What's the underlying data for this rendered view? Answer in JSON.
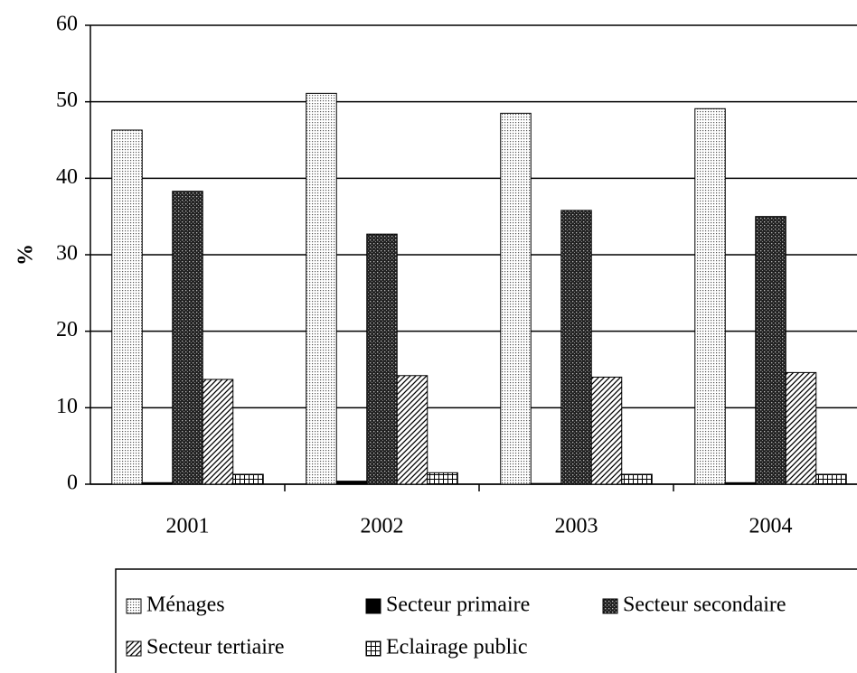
{
  "chart_data": {
    "type": "bar",
    "ylabel": "%",
    "categories": [
      "2001",
      "2002",
      "2003",
      "2004"
    ],
    "series": [
      {
        "name": "Ménages",
        "pattern": "dots",
        "values": [
          46.3,
          51.1,
          48.5,
          49.1
        ]
      },
      {
        "name": "Secteur primaire",
        "pattern": "solid",
        "values": [
          0.2,
          0.4,
          0.1,
          0.2
        ]
      },
      {
        "name": "Secteur secondaire",
        "pattern": "crosshatch",
        "values": [
          38.3,
          32.7,
          35.8,
          35.0
        ]
      },
      {
        "name": "Secteur tertiaire",
        "pattern": "diagonal",
        "values": [
          13.7,
          14.2,
          14.0,
          14.6
        ]
      },
      {
        "name": "Eclairage public",
        "pattern": "grid",
        "values": [
          1.3,
          1.5,
          1.3,
          1.3
        ]
      }
    ],
    "ylim": [
      0,
      60
    ],
    "yticks": [
      0,
      10,
      20,
      30,
      40,
      50,
      60
    ],
    "grid": true
  }
}
